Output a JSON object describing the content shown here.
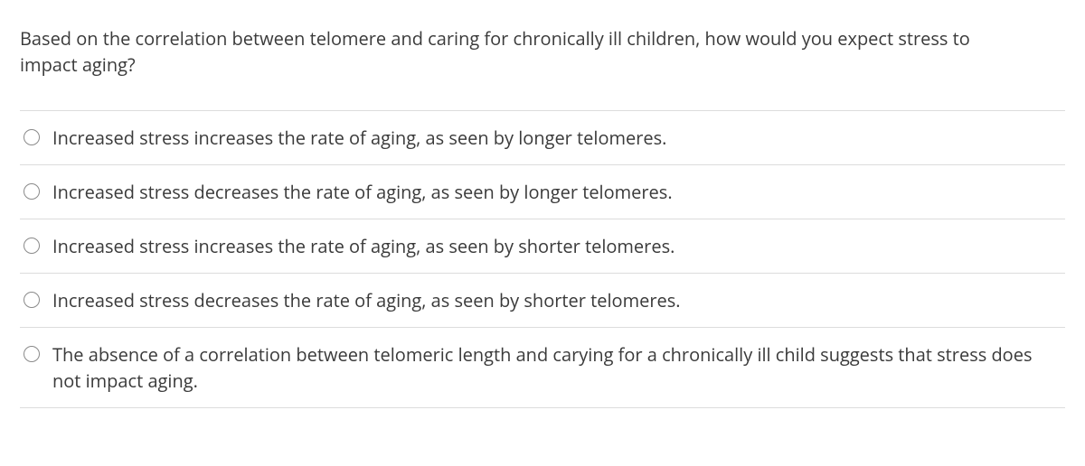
{
  "question": {
    "text": "Based on the correlation between telomere and caring for chronically ill children, how would you expect stress to impact aging?"
  },
  "options": [
    {
      "text": "Increased stress increases the rate of aging, as seen by longer telomeres."
    },
    {
      "text": "Increased stress decreases the rate of aging, as seen by longer telomeres."
    },
    {
      "text": "Increased stress increases the rate of aging, as seen by shorter telomeres."
    },
    {
      "text": "Increased stress decreases the rate of aging, as seen by shorter telomeres."
    },
    {
      "text": "The absence of a correlation between telomeric length and carying for a chronically ill child suggests that stress does not impact aging."
    }
  ],
  "colors": {
    "text": "#3a3a3a",
    "divider": "#dcdcdc",
    "radio_border": "#8a8a8a",
    "background": "#ffffff"
  }
}
